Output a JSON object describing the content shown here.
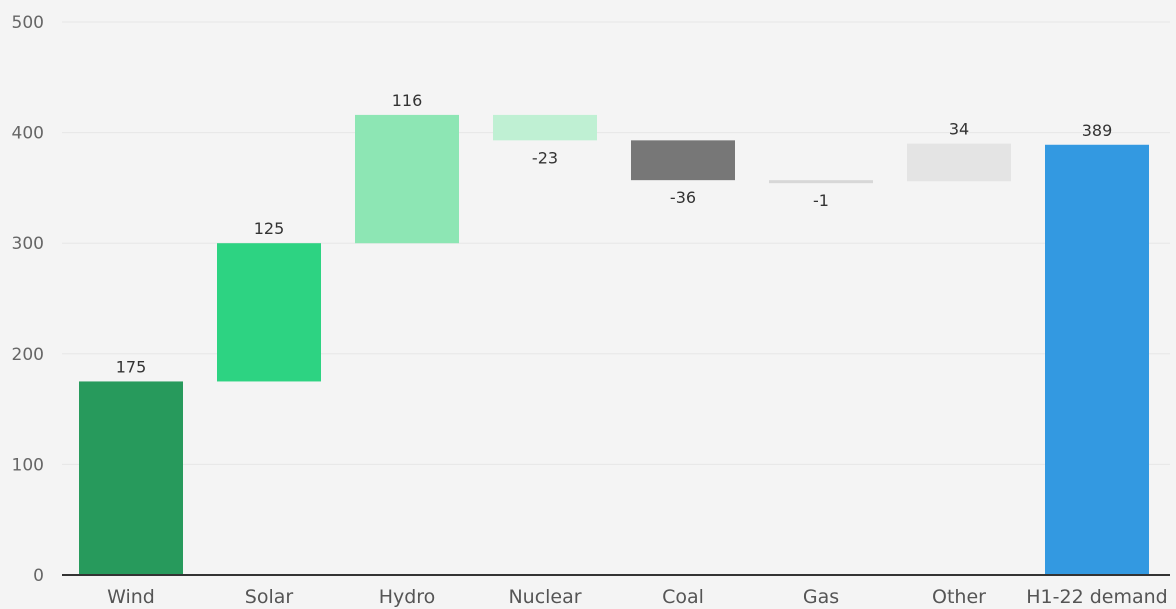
{
  "chart_data": {
    "type": "bar",
    "subtype": "waterfall",
    "categories": [
      "Wind",
      "Solar",
      "Hydro",
      "Nuclear",
      "Coal",
      "Gas",
      "Other",
      "H1-22 demand"
    ],
    "values": [
      175,
      125,
      116,
      -23,
      -36,
      -1,
      34,
      389
    ],
    "labels": [
      "175",
      "125",
      "116",
      "-23",
      "-36",
      "-1",
      "34",
      "389"
    ],
    "bases": [
      0,
      175,
      300,
      416,
      393,
      357,
      356,
      0
    ],
    "colors": [
      "#279a5c",
      "#2dd382",
      "#8de6b4",
      "#bff0d3",
      "#777777",
      "#d7d7d7",
      "#e4e4e4",
      "#3399e1"
    ],
    "yticks": [
      0,
      100,
      200,
      300,
      400,
      500
    ],
    "ylim": [
      0,
      500
    ],
    "grid": true,
    "legend": "none",
    "title": "",
    "xlabel": "",
    "ylabel": ""
  }
}
